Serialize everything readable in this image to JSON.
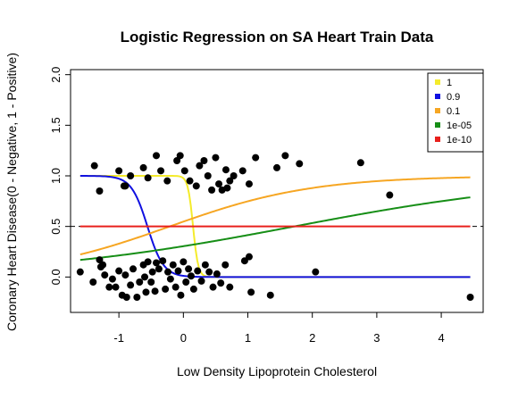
{
  "chart_data": {
    "type": "scatter",
    "title": "Logistic Regression on SA Heart Train Data",
    "xlabel": "Low Density Lipoprotein Cholesterol",
    "ylabel": "Coronary Heart Disease(0 - Negative, 1 - Positive)",
    "xlim": [
      -1.75,
      4.65
    ],
    "ylim": [
      -0.35,
      2.05
    ],
    "x_ticks": [
      -1,
      0,
      1,
      2,
      3,
      4
    ],
    "y_ticks": [
      0.0,
      0.5,
      1.0,
      1.5,
      2.0
    ],
    "x_tick_labels": [
      "-1",
      "0",
      "1",
      "2",
      "3",
      "4"
    ],
    "y_tick_labels": [
      "0.0",
      "0.5",
      "1.0",
      "1.5",
      "2.0"
    ],
    "grid": false,
    "legend_position": "top-right",
    "reference_line": {
      "y": 0.5,
      "style": "dashed",
      "color": "#000000"
    },
    "points_color": "#000000",
    "points": [
      [
        -1.6,
        0.05
      ],
      [
        -1.4,
        -0.05
      ],
      [
        -1.3,
        0.17
      ],
      [
        -1.28,
        0.1
      ],
      [
        -1.25,
        0.12
      ],
      [
        -1.22,
        0.02
      ],
      [
        -1.15,
        -0.1
      ],
      [
        -1.1,
        -0.02
      ],
      [
        -1.05,
        -0.1
      ],
      [
        -1.0,
        0.06
      ],
      [
        -0.95,
        -0.18
      ],
      [
        -0.9,
        0.02
      ],
      [
        -0.88,
        -0.2
      ],
      [
        -0.82,
        -0.08
      ],
      [
        -0.78,
        0.08
      ],
      [
        -0.72,
        -0.2
      ],
      [
        -0.68,
        -0.05
      ],
      [
        -0.62,
        0.12
      ],
      [
        -0.6,
        0.0
      ],
      [
        -0.58,
        -0.15
      ],
      [
        -0.55,
        0.15
      ],
      [
        -0.5,
        -0.05
      ],
      [
        -0.48,
        0.05
      ],
      [
        -0.44,
        -0.14
      ],
      [
        -0.42,
        0.14
      ],
      [
        -0.38,
        0.08
      ],
      [
        -0.32,
        0.16
      ],
      [
        -0.28,
        -0.12
      ],
      [
        -0.24,
        0.05
      ],
      [
        -0.2,
        -0.02
      ],
      [
        -0.16,
        0.12
      ],
      [
        -0.12,
        -0.1
      ],
      [
        -0.08,
        0.06
      ],
      [
        -0.04,
        -0.18
      ],
      [
        0.0,
        0.15
      ],
      [
        0.04,
        -0.05
      ],
      [
        0.08,
        0.08
      ],
      [
        0.12,
        0.01
      ],
      [
        0.16,
        -0.12
      ],
      [
        0.22,
        0.06
      ],
      [
        0.28,
        -0.04
      ],
      [
        0.34,
        0.12
      ],
      [
        0.4,
        0.05
      ],
      [
        0.46,
        -0.1
      ],
      [
        0.52,
        0.03
      ],
      [
        0.58,
        -0.06
      ],
      [
        0.65,
        0.12
      ],
      [
        0.72,
        -0.1
      ],
      [
        0.95,
        0.16
      ],
      [
        1.02,
        0.2
      ],
      [
        1.05,
        -0.15
      ],
      [
        1.35,
        -0.18
      ],
      [
        2.05,
        0.05
      ],
      [
        4.45,
        -0.2
      ],
      [
        -1.38,
        1.1
      ],
      [
        -1.3,
        0.85
      ],
      [
        -1.0,
        1.05
      ],
      [
        -0.92,
        0.9
      ],
      [
        -0.82,
        1.0
      ],
      [
        -0.62,
        1.08
      ],
      [
        -0.55,
        0.98
      ],
      [
        -0.42,
        1.2
      ],
      [
        -0.35,
        1.05
      ],
      [
        -0.25,
        0.95
      ],
      [
        -0.1,
        1.15
      ],
      [
        -0.05,
        1.2
      ],
      [
        0.02,
        1.05
      ],
      [
        0.1,
        0.95
      ],
      [
        0.2,
        0.9
      ],
      [
        0.32,
        1.15
      ],
      [
        0.38,
        1.0
      ],
      [
        0.44,
        0.86
      ],
      [
        0.5,
        1.18
      ],
      [
        0.55,
        0.92
      ],
      [
        0.6,
        0.86
      ],
      [
        0.66,
        1.06
      ],
      [
        0.72,
        0.95
      ],
      [
        0.78,
        1.0
      ],
      [
        0.92,
        1.05
      ],
      [
        1.02,
        0.92
      ],
      [
        1.12,
        1.18
      ],
      [
        1.45,
        1.08
      ],
      [
        1.58,
        1.2
      ],
      [
        1.8,
        1.12
      ],
      [
        2.75,
        1.13
      ],
      [
        3.2,
        0.81
      ],
      [
        -0.9,
        0.9
      ],
      [
        0.25,
        1.1
      ],
      [
        0.68,
        0.88
      ]
    ],
    "series": [
      {
        "name": "1",
        "color": "#F4EB2B",
        "curve": "logistic",
        "intercept": -3.6,
        "slope": 25,
        "x_center": 0.15
      },
      {
        "name": "0.9",
        "color": "#1010E0",
        "curve": "logistic",
        "intercept": -8.5,
        "slope": 8,
        "x_center": -1.62
      },
      {
        "name": "0.1",
        "color": "#F6A623",
        "curve": "logistic",
        "intercept": 0.1,
        "slope": 0.9,
        "x_center": -0.1
      },
      {
        "name": "1e-05",
        "color": "#168E16",
        "curve": "logistic",
        "intercept": -0.25,
        "slope": 0.48,
        "x_center": 1.2
      },
      {
        "name": "1e-10",
        "color": "#E8201C",
        "curve": "constant",
        "value": 0.5
      }
    ]
  }
}
